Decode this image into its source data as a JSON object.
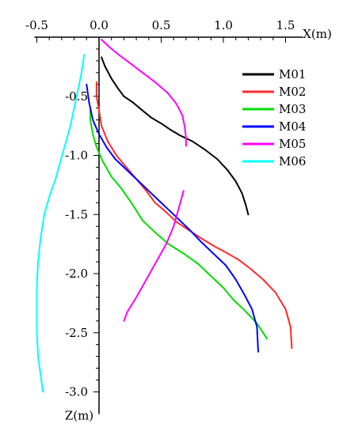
{
  "chart_data": {
    "type": "line",
    "xlabel": "X(m)",
    "ylabel": "Z(m)",
    "xlim": [
      -0.5,
      1.5
    ],
    "ylim": [
      -3.0,
      0.0
    ],
    "x_ticks": [
      -0.5,
      0.0,
      0.5,
      1.0,
      1.5
    ],
    "x_tick_labels": [
      "-0.5",
      "0.0",
      "0.5",
      "1.0",
      "1.5"
    ],
    "y_ticks": [
      -0.5,
      -1.0,
      -1.5,
      -2.0,
      -2.5,
      -3.0
    ],
    "y_tick_labels": [
      "-0.5",
      "-1.0",
      "-1.5",
      "-2.0",
      "-2.5",
      "-3.0"
    ],
    "legend_position": "top-right",
    "series": [
      {
        "name": "M01",
        "color": "#000000",
        "points": [
          [
            0.02,
            -0.17
          ],
          [
            0.05,
            -0.25
          ],
          [
            0.1,
            -0.35
          ],
          [
            0.15,
            -0.43
          ],
          [
            0.2,
            -0.5
          ],
          [
            0.27,
            -0.55
          ],
          [
            0.35,
            -0.62
          ],
          [
            0.42,
            -0.68
          ],
          [
            0.5,
            -0.73
          ],
          [
            0.57,
            -0.78
          ],
          [
            0.65,
            -0.83
          ],
          [
            0.75,
            -0.88
          ],
          [
            0.85,
            -0.95
          ],
          [
            0.95,
            -1.03
          ],
          [
            1.03,
            -1.12
          ],
          [
            1.1,
            -1.22
          ],
          [
            1.15,
            -1.32
          ],
          [
            1.18,
            -1.42
          ],
          [
            1.2,
            -1.5
          ]
        ]
      },
      {
        "name": "M02",
        "color": "#ff2a2a",
        "points": [
          [
            -0.02,
            -0.38
          ],
          [
            -0.02,
            -0.5
          ],
          [
            0.0,
            -0.62
          ],
          [
            0.02,
            -0.75
          ],
          [
            0.07,
            -0.88
          ],
          [
            0.14,
            -1.0
          ],
          [
            0.22,
            -1.1
          ],
          [
            0.3,
            -1.2
          ],
          [
            0.38,
            -1.3
          ],
          [
            0.45,
            -1.4
          ],
          [
            0.54,
            -1.48
          ],
          [
            0.62,
            -1.56
          ],
          [
            0.72,
            -1.63
          ],
          [
            0.82,
            -1.7
          ],
          [
            0.93,
            -1.77
          ],
          [
            1.02,
            -1.82
          ],
          [
            1.12,
            -1.88
          ],
          [
            1.22,
            -1.96
          ],
          [
            1.32,
            -2.05
          ],
          [
            1.42,
            -2.16
          ],
          [
            1.5,
            -2.3
          ],
          [
            1.54,
            -2.45
          ],
          [
            1.55,
            -2.63
          ]
        ]
      },
      {
        "name": "M03",
        "color": "#00dd00",
        "points": [
          [
            -0.07,
            -0.6
          ],
          [
            -0.07,
            -0.7
          ],
          [
            -0.05,
            -0.82
          ],
          [
            -0.02,
            -0.93
          ],
          [
            0.03,
            -1.05
          ],
          [
            0.1,
            -1.18
          ],
          [
            0.18,
            -1.28
          ],
          [
            0.26,
            -1.4
          ],
          [
            0.35,
            -1.55
          ],
          [
            0.45,
            -1.65
          ],
          [
            0.56,
            -1.75
          ],
          [
            0.68,
            -1.83
          ],
          [
            0.8,
            -1.92
          ],
          [
            0.9,
            -2.02
          ],
          [
            1.0,
            -2.12
          ],
          [
            1.08,
            -2.22
          ],
          [
            1.17,
            -2.31
          ],
          [
            1.27,
            -2.42
          ],
          [
            1.35,
            -2.55
          ]
        ]
      },
      {
        "name": "M04",
        "color": "#0000ff",
        "points": [
          [
            -0.1,
            -0.4
          ],
          [
            -0.08,
            -0.55
          ],
          [
            -0.05,
            -0.7
          ],
          [
            0.0,
            -0.82
          ],
          [
            0.06,
            -0.93
          ],
          [
            0.13,
            -1.03
          ],
          [
            0.22,
            -1.12
          ],
          [
            0.32,
            -1.22
          ],
          [
            0.42,
            -1.32
          ],
          [
            0.52,
            -1.42
          ],
          [
            0.62,
            -1.52
          ],
          [
            0.72,
            -1.62
          ],
          [
            0.82,
            -1.73
          ],
          [
            0.92,
            -1.83
          ],
          [
            1.02,
            -1.93
          ],
          [
            1.1,
            -2.05
          ],
          [
            1.17,
            -2.18
          ],
          [
            1.23,
            -2.3
          ],
          [
            1.27,
            -2.45
          ],
          [
            1.28,
            -2.66
          ]
        ]
      },
      {
        "name": "M05",
        "color": "#ff00ff",
        "points": [
          [
            0.02,
            -0.02
          ],
          [
            0.08,
            -0.08
          ],
          [
            0.16,
            -0.15
          ],
          [
            0.25,
            -0.22
          ],
          [
            0.35,
            -0.3
          ],
          [
            0.45,
            -0.38
          ],
          [
            0.55,
            -0.47
          ],
          [
            0.62,
            -0.56
          ],
          [
            0.67,
            -0.66
          ],
          [
            0.69,
            -0.76
          ],
          [
            0.7,
            -0.86
          ],
          [
            0.7,
            -0.92
          ],
          null,
          [
            0.68,
            -1.3
          ],
          [
            0.64,
            -1.45
          ],
          [
            0.6,
            -1.6
          ],
          [
            0.54,
            -1.75
          ],
          [
            0.46,
            -1.9
          ],
          [
            0.38,
            -2.05
          ],
          [
            0.3,
            -2.2
          ],
          [
            0.23,
            -2.32
          ],
          [
            0.2,
            -2.4
          ]
        ]
      },
      {
        "name": "M06",
        "color": "#00ffff",
        "points": [
          [
            -0.12,
            -0.15
          ],
          [
            -0.14,
            -0.3
          ],
          [
            -0.17,
            -0.45
          ],
          [
            -0.2,
            -0.6
          ],
          [
            -0.23,
            -0.75
          ],
          [
            -0.27,
            -0.9
          ],
          [
            -0.31,
            -1.05
          ],
          [
            -0.35,
            -1.2
          ],
          [
            -0.4,
            -1.35
          ],
          [
            -0.44,
            -1.5
          ],
          [
            -0.47,
            -1.7
          ],
          [
            -0.49,
            -1.9
          ],
          [
            -0.5,
            -2.1
          ],
          [
            -0.5,
            -2.3
          ],
          [
            -0.5,
            -2.5
          ],
          [
            -0.49,
            -2.7
          ],
          [
            -0.47,
            -2.85
          ],
          [
            -0.45,
            -3.0
          ]
        ]
      }
    ]
  }
}
